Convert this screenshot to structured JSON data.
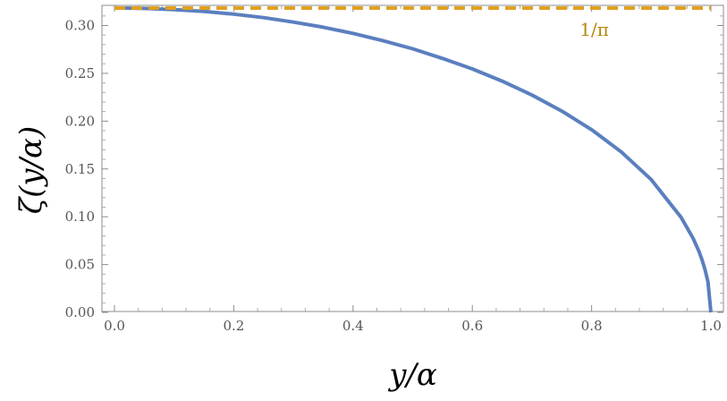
{
  "chart_data": {
    "type": "line",
    "title": "",
    "xlabel": "y/α",
    "ylabel": "ζ(y/α)",
    "xlim": [
      0.0,
      1.0
    ],
    "ylim": [
      0.0,
      0.32
    ],
    "x_ticks": [
      "0.0",
      "0.2",
      "0.4",
      "0.6",
      "0.8",
      "1.0"
    ],
    "y_ticks": [
      "0.00",
      "0.05",
      "0.10",
      "0.15",
      "0.20",
      "0.25",
      "0.30"
    ],
    "grid": false,
    "series": [
      {
        "color": "#5b7fbf",
        "style": "solid",
        "x": [
          0.0,
          0.05,
          0.1,
          0.15,
          0.2,
          0.25,
          0.3,
          0.35,
          0.4,
          0.45,
          0.5,
          0.55,
          0.6,
          0.65,
          0.7,
          0.75,
          0.8,
          0.85,
          0.9,
          0.95,
          0.97,
          0.98,
          0.985,
          0.99,
          0.995,
          1.0
        ],
        "y": [
          0.3183,
          0.3179,
          0.3167,
          0.3147,
          0.3119,
          0.3082,
          0.3036,
          0.2982,
          0.2918,
          0.2842,
          0.2757,
          0.2656,
          0.2546,
          0.2419,
          0.2273,
          0.2105,
          0.191,
          0.1677,
          0.1388,
          0.0995,
          0.0776,
          0.0637,
          0.0551,
          0.0451,
          0.032,
          0.0
        ]
      },
      {
        "color": "#e0a020",
        "style": "dashed",
        "x": [
          0.0,
          1.0
        ],
        "y": [
          0.3183,
          0.3183
        ]
      }
    ],
    "annotations": [
      {
        "text": "1/π",
        "x": 0.78,
        "y": 0.3
      }
    ]
  }
}
